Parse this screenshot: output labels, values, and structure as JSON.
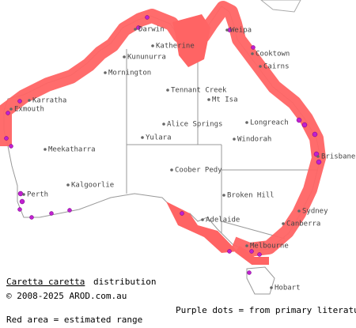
{
  "map": {
    "towns": [
      "Darwin",
      "Katherine",
      "Kununurra",
      "Weipa",
      "Cooktown",
      "Cairns",
      "Mornington",
      "Tennant Creek",
      "Mt Isa",
      "Karratha",
      "Exmouth",
      "Alice Springs",
      "Longreach",
      "Yulara",
      "Windorah",
      "Meekatharra",
      "Brisbane",
      "Coober Pedy",
      "Perth",
      "Kalgoorlie",
      "Broken Hill",
      "Sydney",
      "Canberra",
      "Adelaide",
      "Melbourne",
      "Hobart"
    ],
    "caption": {
      "species": "Caretta caretta",
      "distribution": "distribution",
      "copyright": "© 2008-2025 AROD.com.au",
      "legend_purple": "Purple dots = from primary literature",
      "legend_red": "Red area = estimated range"
    }
  }
}
